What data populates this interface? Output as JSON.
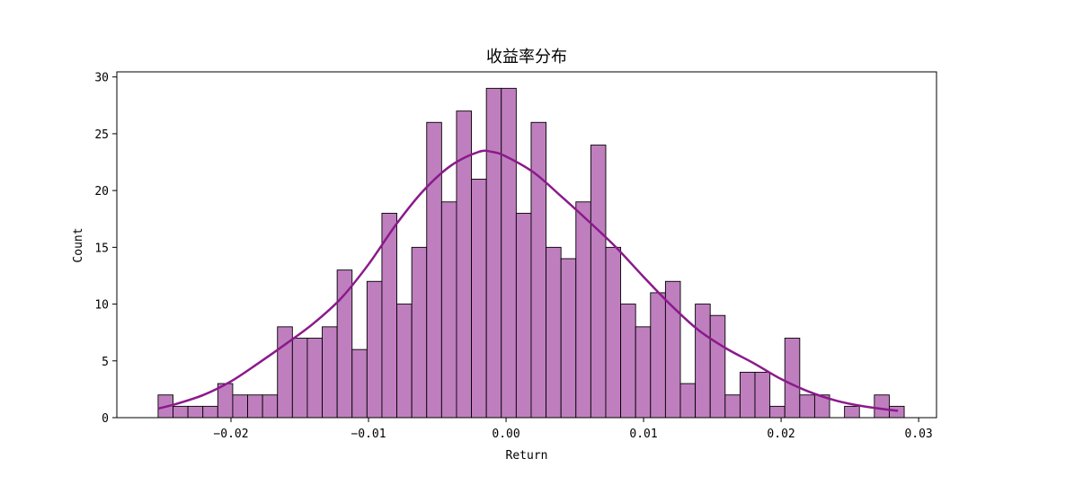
{
  "chart_data": {
    "type": "bar",
    "title": "收益率分布",
    "xlabel": "Return",
    "ylabel": "Count",
    "xlim": [
      -0.0283,
      0.0313
    ],
    "ylim": [
      0,
      30.45
    ],
    "bin_start": -0.0253,
    "bin_width": 0.001085,
    "counts": [
      2,
      1,
      1,
      1,
      3,
      2,
      2,
      2,
      8,
      7,
      7,
      8,
      13,
      6,
      12,
      18,
      10,
      15,
      26,
      19,
      27,
      21,
      29,
      29,
      18,
      26,
      15,
      14,
      19,
      24,
      15,
      10,
      8,
      11,
      12,
      3,
      10,
      9,
      2,
      4,
      4,
      1,
      7,
      2,
      2,
      0,
      1,
      0,
      2,
      1
    ],
    "x_ticks": [
      -0.02,
      -0.01,
      0.0,
      0.01,
      0.02,
      0.03
    ],
    "x_tick_labels": [
      "−0.02",
      "−0.01",
      "0.00",
      "0.01",
      "0.02",
      "0.03"
    ],
    "y_ticks": [
      0,
      5,
      10,
      15,
      20,
      25,
      30
    ],
    "y_tick_labels": [
      "0",
      "5",
      "10",
      "15",
      "20",
      "25",
      "30"
    ],
    "kde": {
      "x": [
        -0.0253,
        -0.024,
        -0.022,
        -0.02,
        -0.018,
        -0.016,
        -0.014,
        -0.012,
        -0.01,
        -0.008,
        -0.006,
        -0.004,
        -0.002,
        -0.001,
        0.0,
        0.002,
        0.004,
        0.006,
        0.008,
        0.01,
        0.012,
        0.014,
        0.016,
        0.018,
        0.02,
        0.022,
        0.024,
        0.026,
        0.0285
      ],
      "y": [
        0.8,
        1.2,
        2.0,
        3.2,
        4.8,
        6.5,
        8.3,
        10.5,
        13.5,
        17.0,
        20.0,
        22.2,
        23.4,
        23.4,
        23.0,
        21.6,
        19.5,
        17.3,
        15.0,
        12.4,
        9.9,
        7.7,
        6.1,
        4.8,
        3.4,
        2.3,
        1.5,
        1.0,
        0.6
      ]
    },
    "bar_color": "#bf7fbf",
    "bar_edge_color": "#000000",
    "kde_color": "#8b1a8b",
    "grid": false,
    "legend": "none"
  }
}
